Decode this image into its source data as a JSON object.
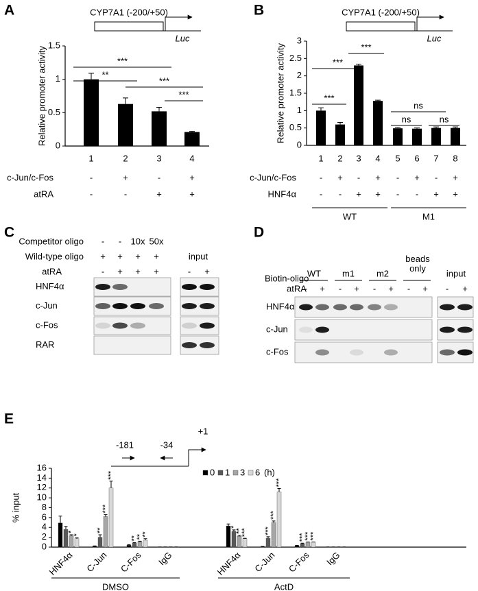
{
  "chart_data": [
    {
      "type": "bar",
      "panel": "A",
      "promoter": "CYP7A1 (-200/+50)",
      "reporter": "Luc",
      "y_label": "Relative promoter activity",
      "categories": [
        "1",
        "2",
        "3",
        "4"
      ],
      "values": [
        1.0,
        0.63,
        0.52,
        0.21
      ],
      "errors": [
        0.09,
        0.09,
        0.06,
        0.01
      ],
      "color": "#000000",
      "ylim": [
        0,
        1.5
      ],
      "yticks": [
        0,
        0.5,
        1,
        1.5
      ],
      "conditions": [
        {
          "name": "c-Jun/c-Fos",
          "values": [
            "-",
            "+",
            "-",
            "+"
          ]
        },
        {
          "name": "atRA",
          "values": [
            "-",
            "-",
            "+",
            "+"
          ]
        }
      ],
      "annotations": [
        "***",
        "**",
        "***",
        "***"
      ]
    },
    {
      "type": "bar",
      "panel": "B",
      "promoter": "CYP7A1 (-200/+50)",
      "reporter": "Luc",
      "y_label": "Relative promoter activity",
      "categories": [
        "1",
        "2",
        "3",
        "4",
        "5",
        "6",
        "7",
        "8"
      ],
      "values": [
        1.0,
        0.6,
        2.3,
        1.28,
        0.49,
        0.48,
        0.5,
        0.5
      ],
      "errors": [
        0.08,
        0.06,
        0.04,
        0.02,
        0.02,
        0.02,
        0.03,
        0.03
      ],
      "color": "#000000",
      "ylim": [
        0,
        3
      ],
      "yticks": [
        0,
        0.5,
        1,
        1.5,
        2,
        2.5,
        3
      ],
      "conditions": [
        {
          "name": "c-Jun/c-Fos",
          "values": [
            "-",
            "+",
            "-",
            "+",
            "-",
            "+",
            "-",
            "+"
          ]
        },
        {
          "name": "HNF4α",
          "values": [
            "-",
            "-",
            "+",
            "+",
            "-",
            "-",
            "+",
            "+"
          ]
        }
      ],
      "groups": [
        "WT",
        "M1"
      ],
      "annotations": [
        "***",
        "***",
        "***",
        "ns",
        "ns",
        "ns"
      ]
    },
    {
      "type": "grouped-bar",
      "panel": "E",
      "primers": [
        "-181",
        "-34"
      ],
      "tss": "+1",
      "y_label": "% input",
      "categories": [
        "HNF4α",
        "C-Jun",
        "C-Fos",
        "IgG",
        "HNF4α",
        "C-Jun",
        "C-Fos",
        "IgG"
      ],
      "groups": [
        "DMSO",
        "ActD"
      ],
      "legend_unit": "(h)",
      "ylim": [
        0,
        16
      ],
      "yticks": [
        0,
        2,
        4,
        6,
        8,
        10,
        12,
        14,
        16
      ],
      "series": [
        {
          "name": "0",
          "color": "#000000",
          "values": [
            4.9,
            0.2,
            0.4,
            0.02,
            4.3,
            0.1,
            0.3,
            0.02
          ],
          "errors": [
            1.4,
            0.05,
            0.1,
            0.01,
            0.4,
            0.05,
            0.05,
            0.01
          ],
          "stars": [
            null,
            null,
            null,
            null,
            null,
            null,
            null,
            null
          ]
        },
        {
          "name": "1",
          "color": "#595959",
          "values": [
            3.6,
            2.0,
            0.8,
            0.02,
            3.2,
            1.8,
            0.7,
            0.02
          ],
          "errors": [
            0.6,
            0.5,
            0.1,
            0.01,
            0.3,
            0.3,
            0.1,
            0.01
          ],
          "stars": [
            null,
            "**",
            "**",
            null,
            "*",
            "***",
            "***",
            null
          ]
        },
        {
          "name": "3",
          "color": "#a6a6a6",
          "values": [
            2.3,
            6.2,
            1.1,
            0.02,
            2.2,
            5.0,
            1.0,
            0.02
          ],
          "errors": [
            0.2,
            0.4,
            0.1,
            0.01,
            0.2,
            0.3,
            0.05,
            0.01
          ],
          "stars": [
            "*",
            "***",
            "**",
            null,
            "**",
            "***",
            "***",
            null
          ]
        },
        {
          "name": "6",
          "color": "#d9d9d9",
          "values": [
            1.7,
            12.0,
            1.4,
            0.02,
            1.7,
            11.2,
            1.0,
            0.02
          ],
          "errors": [
            0.2,
            1.4,
            0.3,
            0.01,
            0.1,
            0.7,
            0.05,
            0.01
          ],
          "stars": [
            "*",
            "***",
            "**",
            null,
            "***",
            "***",
            "***",
            null
          ]
        }
      ]
    }
  ],
  "blots": [
    {
      "panel": "C",
      "header_rows": [
        {
          "name": "Competitor oligo",
          "values": [
            "-",
            "-",
            "10x",
            "50x"
          ]
        },
        {
          "name": "Wild-type oligo",
          "values": [
            "+",
            "+",
            "+",
            "+"
          ]
        },
        {
          "name": "atRA",
          "values": [
            "-",
            "+",
            "+",
            "+"
          ],
          "input_values": [
            "-",
            "+"
          ]
        }
      ],
      "input": "input",
      "proteins": [
        "HNF4α",
        "c-Jun",
        "c-Fos",
        "RAR"
      ]
    },
    {
      "panel": "D",
      "label": "Biotin-oligo",
      "groups": [
        "WT",
        "m1",
        "m2",
        "beads only"
      ],
      "atra": {
        "name": "atRA",
        "values": [
          "-",
          "+",
          "-",
          "+",
          "-",
          "+",
          "-",
          "+"
        ],
        "input_values": [
          "-",
          "+"
        ]
      },
      "input": "input",
      "proteins": [
        "HNF4α",
        "c-Jun",
        "c-Fos"
      ]
    }
  ]
}
